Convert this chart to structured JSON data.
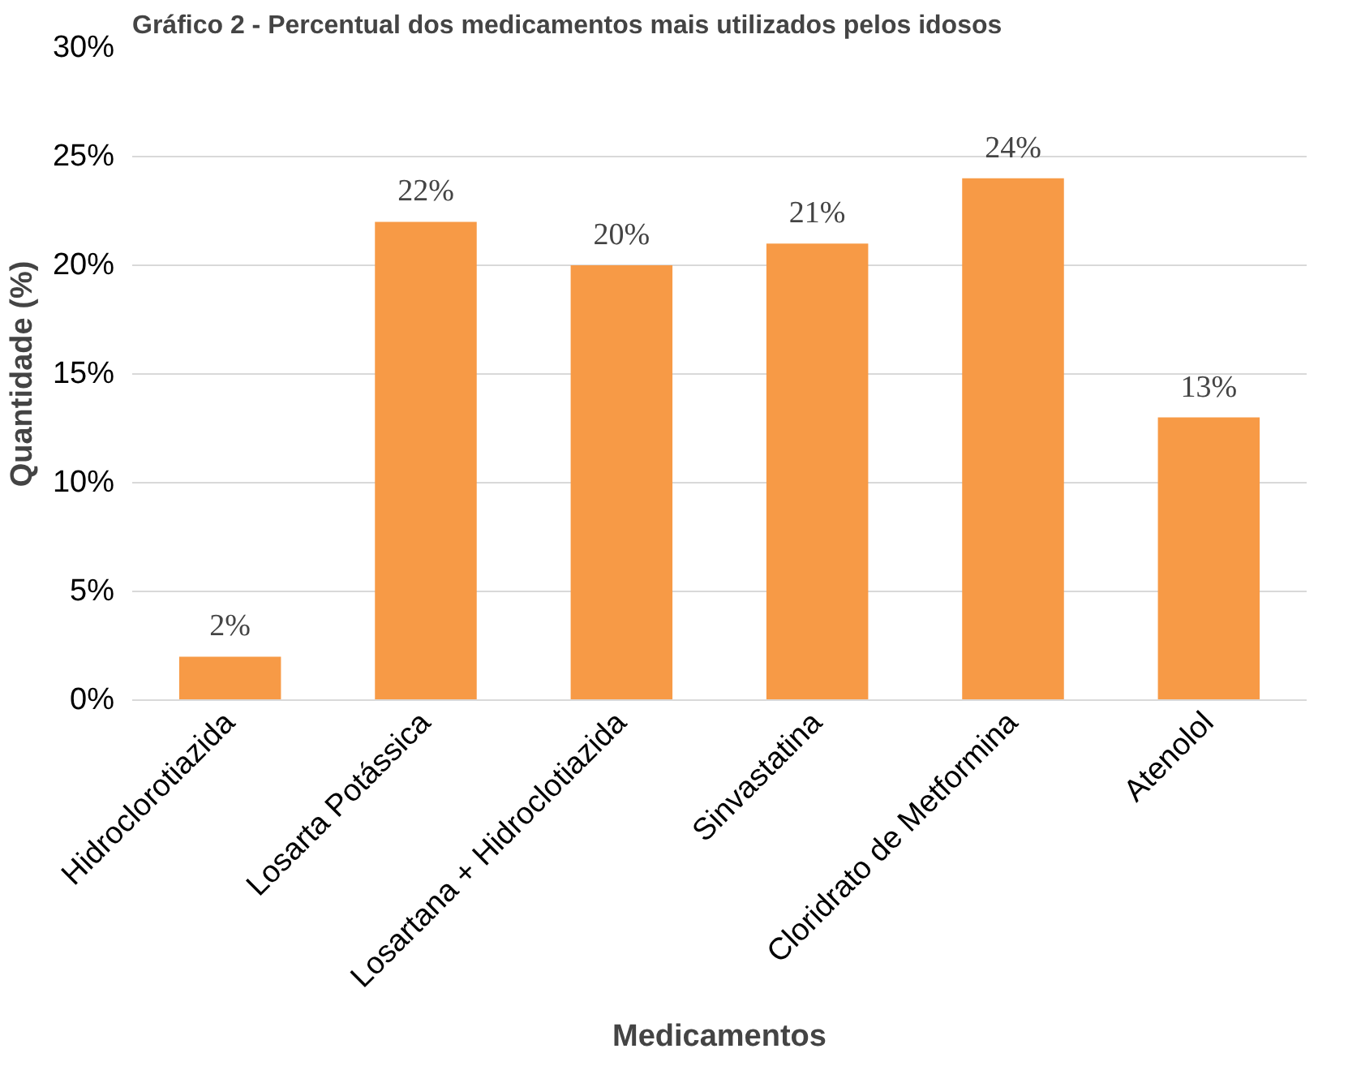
{
  "chart_data": {
    "type": "bar",
    "title": "Gráfico 2 - Percentual dos medicamentos mais utilizados pelos idosos",
    "xlabel": "Medicamentos",
    "ylabel": "Quantidade (%)",
    "categories": [
      "Hidroclorotiazida",
      "Losarta Potássica",
      "Losartana + Hidroclotiazida",
      "Sinvastatina",
      "Cloridrato de Metformina",
      "Atenolol"
    ],
    "values": [
      2,
      22,
      20,
      21,
      24,
      13
    ],
    "value_labels": [
      "2%",
      "22%",
      "20%",
      "21%",
      "24%",
      "13%"
    ],
    "color": "#f79a46",
    "ylim": [
      0,
      30
    ],
    "yticks": [
      {
        "value": 0,
        "label": "0%"
      },
      {
        "value": 5,
        "label": "5%"
      },
      {
        "value": 10,
        "label": "10%"
      },
      {
        "value": 15,
        "label": "15%"
      },
      {
        "value": 20,
        "label": "20%"
      },
      {
        "value": 25,
        "label": "25%"
      },
      {
        "value": 30,
        "label": "30%"
      }
    ],
    "grid": "y"
  }
}
